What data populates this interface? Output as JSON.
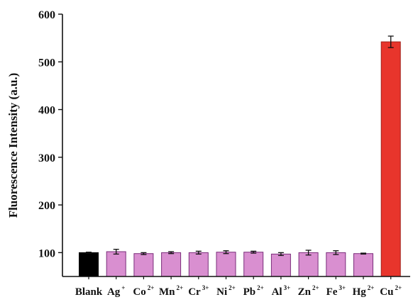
{
  "chart_data": {
    "type": "bar",
    "title": "",
    "xlabel": "",
    "ylabel": "Fluorescence Intensity (a.u.)",
    "ylim": [
      50,
      600
    ],
    "yticks": [
      100,
      200,
      300,
      400,
      500,
      600
    ],
    "grid": false,
    "legend": "none",
    "categories": [
      {
        "base": "Blank",
        "sup": ""
      },
      {
        "base": "Ag",
        "sup": "+"
      },
      {
        "base": "Co",
        "sup": "2+"
      },
      {
        "base": "Mn",
        "sup": "2+"
      },
      {
        "base": "Cr",
        "sup": "3+"
      },
      {
        "base": "Ni",
        "sup": "2+"
      },
      {
        "base": "Pb",
        "sup": "2+"
      },
      {
        "base": "Al",
        "sup": "3+"
      },
      {
        "base": "Zn",
        "sup": "2+"
      },
      {
        "base": "Fe",
        "sup": "3+"
      },
      {
        "base": "Hg",
        "sup": "2+"
      },
      {
        "base": "Cu",
        "sup": "2+"
      }
    ],
    "values": [
      100,
      102,
      98,
      100,
      100,
      101,
      101,
      97,
      100,
      100,
      98,
      542
    ],
    "errors": [
      1,
      5,
      2,
      2,
      3,
      3,
      2,
      3,
      5,
      4,
      1,
      12
    ],
    "colors": [
      "#000000",
      "#d98fd0",
      "#d98fd0",
      "#d98fd0",
      "#d98fd0",
      "#d98fd0",
      "#d98fd0",
      "#d98fd0",
      "#d98fd0",
      "#d98fd0",
      "#d98fd0",
      "#e8352c"
    ],
    "edge_color": "#7a2d7a"
  }
}
